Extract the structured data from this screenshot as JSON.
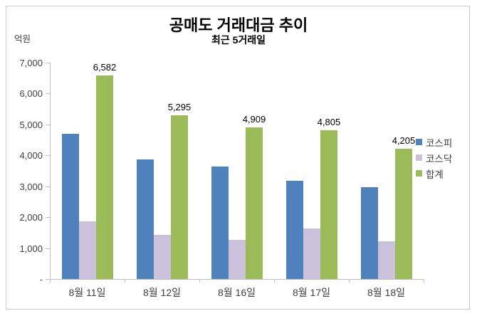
{
  "chart": {
    "title": "공매도 거래대금 추이",
    "subtitle": "최근 5거래일",
    "unit_label": "억원"
  },
  "chart_data": {
    "type": "bar",
    "title": "공매도 거래대금 추이",
    "subtitle": "최근 5거래일",
    "xlabel": "",
    "ylabel": "억원",
    "ylim": [
      0,
      7000
    ],
    "y_tick_step": 1000,
    "y_tick_labels": [
      "7,000",
      "6,000",
      "5,000",
      "4,000",
      "3,000",
      "2,000",
      "1,000",
      "-"
    ],
    "grid": false,
    "legend_position": "right",
    "categories": [
      "8월 11일",
      "8월 12일",
      "8월 16일",
      "8월 17일",
      "8월 18일"
    ],
    "series": [
      {
        "key": "kospi",
        "name": "코스피",
        "color": "#4f81bd",
        "values": [
          4710,
          3860,
          3630,
          3170,
          2980
        ]
      },
      {
        "key": "kosdaq",
        "name": "코스닥",
        "color": "#ccc1da",
        "values": [
          1872,
          1435,
          1279,
          1635,
          1225
        ]
      },
      {
        "key": "total",
        "name": "합계",
        "color": "#9bbb59",
        "values": [
          6582,
          5295,
          4909,
          4805,
          4205
        ],
        "value_labels": [
          "6,582",
          "5,295",
          "4,909",
          "4,805",
          "4,205"
        ]
      }
    ],
    "axis_color": "#bfbfbf",
    "label_color": "#404040"
  }
}
